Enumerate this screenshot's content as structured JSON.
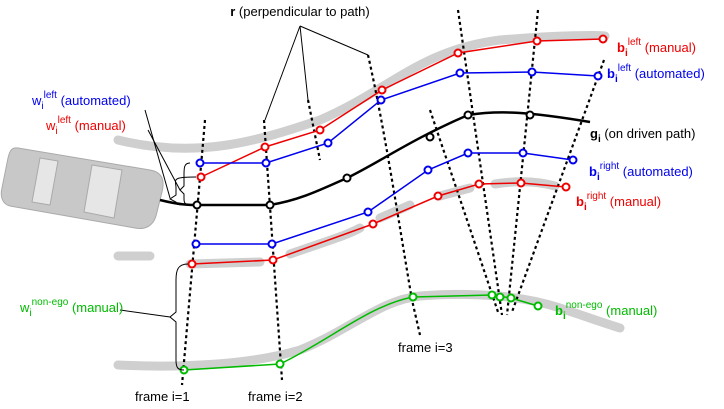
{
  "labels": {
    "r": {
      "base": "r",
      "rest": " (perpendicular to path)"
    },
    "b_left_manual": {
      "base": "b",
      "sub": "i",
      "sup": "left",
      "rest": " (manual)"
    },
    "b_left_automated": {
      "base": "b",
      "sub": "i",
      "sup": "left",
      "rest": " (automated)"
    },
    "g": {
      "base": "g",
      "sub": "i",
      "rest": " (on driven path)"
    },
    "b_right_automated": {
      "base": "b",
      "sub": "i",
      "sup": "right",
      "rest": " (automated)"
    },
    "b_right_manual": {
      "base": "b",
      "sub": "i",
      "sup": "right",
      "rest": " (manual)"
    },
    "w_left_automated": {
      "base": "w",
      "sub": "i",
      "sup": "left",
      "rest": " (automated)"
    },
    "w_left_manual": {
      "base": "w",
      "sub": "i",
      "sup": "left",
      "rest": " (manual)"
    },
    "w_nonego": {
      "base": "w",
      "sub": "i",
      "sup": "non-ego",
      "rest": " (manual)"
    },
    "b_nonego": {
      "base": "b",
      "sub": "i",
      "sup": "non-ego",
      "rest": " (manual)"
    },
    "frame1": {
      "rest": "frame i=1"
    },
    "frame2": {
      "rest": "frame i=2"
    },
    "frame3": {
      "rest": "frame i=3"
    }
  }
}
